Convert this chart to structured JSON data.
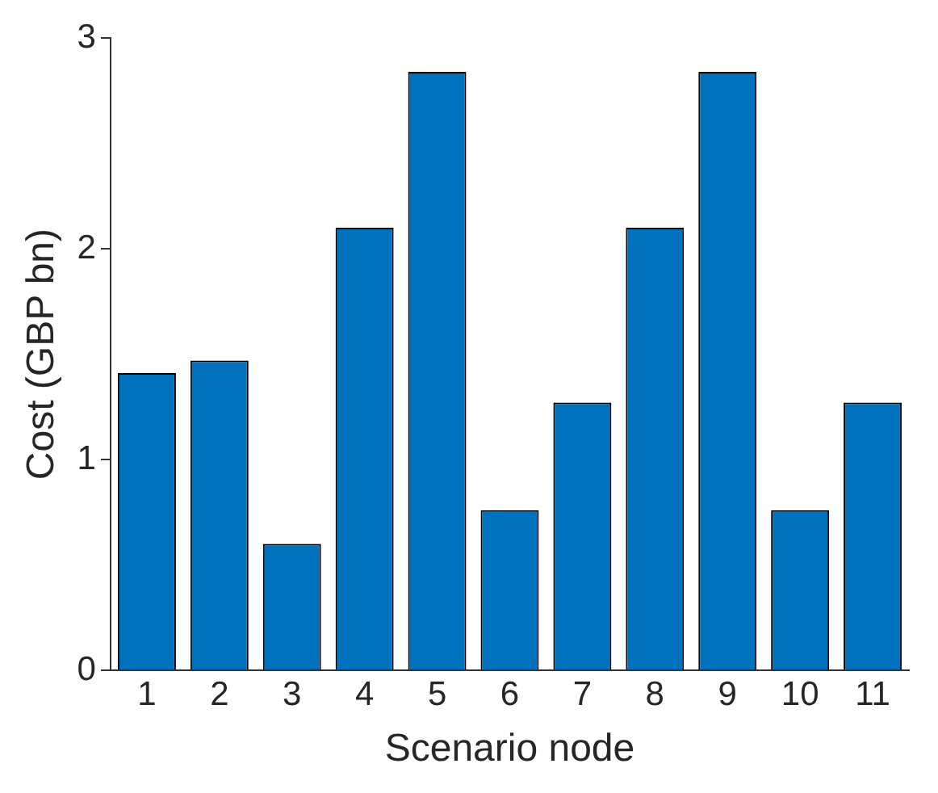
{
  "chart_data": {
    "type": "bar",
    "xlabel": "Scenario node",
    "ylabel": "Cost (GBP bn)",
    "categories": [
      "1",
      "2",
      "3",
      "4",
      "5",
      "6",
      "7",
      "8",
      "9",
      "10",
      "11"
    ],
    "values": [
      1.41,
      1.47,
      0.6,
      2.1,
      2.84,
      0.76,
      1.27,
      2.1,
      2.84,
      0.76,
      1.27
    ],
    "color": "#0072bd",
    "ylim": [
      0,
      3
    ],
    "yticks": [
      0,
      1,
      2,
      3
    ],
    "grid": false,
    "legend": false
  }
}
